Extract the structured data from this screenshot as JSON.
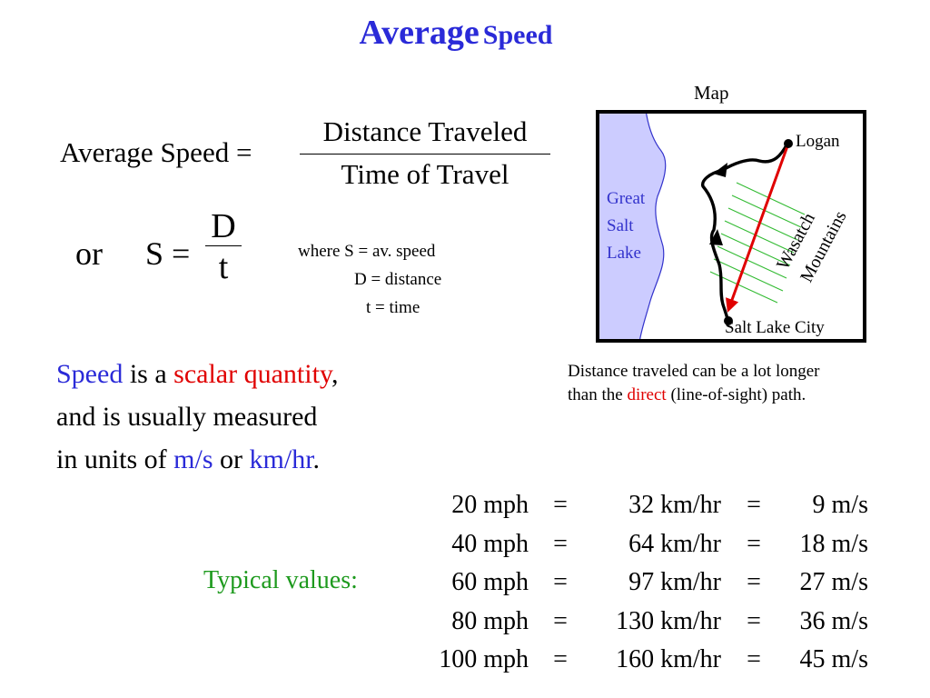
{
  "title": {
    "main": "Average",
    "sub": "Speed"
  },
  "formula1": {
    "lhs": "Average Speed =",
    "numerator": "Distance Traveled",
    "denominator": "Time of Travel"
  },
  "formula2": {
    "or": "or",
    "lhs": "S =",
    "numerator": "D",
    "denominator": "t"
  },
  "where": {
    "line1": "where S = av. speed",
    "line2": "D = distance",
    "line3": "t = time"
  },
  "paragraph": {
    "p1": "Speed",
    "p2": " is a ",
    "p3": "scalar quantity",
    "p4": ",",
    "line2": "and is usually measured",
    "p5": "in units of ",
    "p6": "m/s",
    "p7": " or ",
    "p8": "km/hr",
    "p9": "."
  },
  "map": {
    "label": "Map",
    "lake": [
      "Great",
      "Salt",
      "Lake"
    ],
    "logan": "Logan",
    "slc": "Salt Lake City",
    "mountains1": "Wasatch",
    "mountains2": "Mountains"
  },
  "caption": {
    "line1": "Distance traveled can be a lot longer",
    "line2a": "than the ",
    "line2b": "direct",
    "line2c": " (line-of-sight) path."
  },
  "table": {
    "label": "Typical values:",
    "rows": [
      {
        "mph": "20 mph",
        "eq1": "=",
        "kmh": "32 km/hr",
        "eq2": "=",
        "ms": "9 m/s"
      },
      {
        "mph": "40 mph",
        "eq1": "=",
        "kmh": "64 km/hr",
        "eq2": "=",
        "ms": "18 m/s"
      },
      {
        "mph": "60 mph",
        "eq1": "=",
        "kmh": "97 km/hr",
        "eq2": "=",
        "ms": "27 m/s"
      },
      {
        "mph": "80 mph",
        "eq1": "=",
        "kmh": "130 km/hr",
        "eq2": "=",
        "ms": "36 m/s"
      },
      {
        "mph": "100 mph",
        "eq1": "=",
        "kmh": "160 km/hr",
        "eq2": "=",
        "ms": "45 m/s"
      }
    ]
  },
  "colors": {
    "title": "#2a2ad8",
    "accent_red": "#e00000",
    "green": "#1e9a1e",
    "lake": "#ccccff",
    "lake_text": "#3333cc"
  }
}
